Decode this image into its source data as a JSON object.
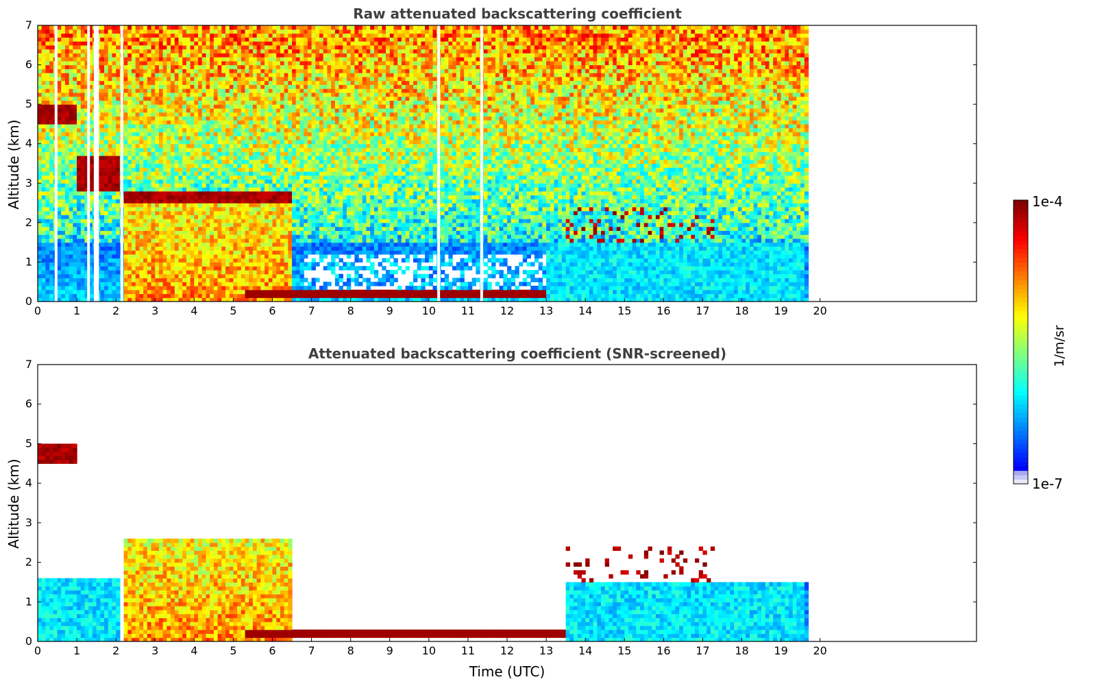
{
  "chart_data": [
    {
      "type": "heatmap",
      "title": "Raw attenuated backscattering coefficient",
      "xlabel": "",
      "ylabel": "Altitude (km)",
      "xlim": [
        0,
        24
      ],
      "ylim": [
        0,
        7
      ],
      "x_ticks": [
        0,
        1,
        2,
        3,
        4,
        5,
        6,
        7,
        8,
        9,
        10,
        11,
        12,
        13,
        14,
        15,
        16,
        17,
        18,
        19,
        20
      ],
      "y_ticks": [
        0,
        1,
        2,
        3,
        4,
        5,
        6,
        7
      ],
      "data_extent_hours": [
        0,
        19.65
      ],
      "missing_profiles_hours": [
        0.47,
        1.3,
        1.47,
        1.53,
        2.15,
        10.25,
        11.35
      ],
      "features": [
        {
          "kind": "cloud",
          "t_start": 0.0,
          "t_end": 1.0,
          "alt_top": 5.0,
          "alt_bottom": 4.5
        },
        {
          "kind": "cloud",
          "t_start": 1.0,
          "t_end": 2.1,
          "alt_top": 3.7,
          "alt_bottom": 2.8
        },
        {
          "kind": "cloud",
          "t_start": 2.2,
          "t_end": 6.5,
          "alt_top": 2.8,
          "alt_bottom": 2.2
        },
        {
          "kind": "precipitation",
          "t_start": 2.2,
          "t_end": 6.5,
          "alt_top": 2.5,
          "alt_bottom": 0.0
        },
        {
          "kind": "fog_layer",
          "t_start": 5.3,
          "t_end": 13.5,
          "alt_top": 0.3,
          "alt_bottom": 0.1
        },
        {
          "kind": "boundary_layer_clouds",
          "t_start": 13.5,
          "t_end": 17.3,
          "alt_top": 2.4,
          "alt_bottom": 0.3
        },
        {
          "kind": "aerosol_layer",
          "t_start": 13.0,
          "t_end": 19.65,
          "alt_top": 1.5,
          "alt_bottom": 0.0
        }
      ]
    },
    {
      "type": "heatmap",
      "title": "Attenuated backscattering coefficient (SNR-screened)",
      "xlabel": "Time (UTC)",
      "ylabel": "Altitude (km)",
      "xlim": [
        0,
        24
      ],
      "ylim": [
        0,
        7
      ],
      "x_ticks": [
        0,
        1,
        2,
        3,
        4,
        5,
        6,
        7,
        8,
        9,
        10,
        11,
        12,
        13,
        14,
        15,
        16,
        17,
        18,
        19,
        20
      ],
      "y_ticks": [
        0,
        1,
        2,
        3,
        4,
        5,
        6,
        7
      ],
      "data_extent_hours": [
        0,
        19.65
      ],
      "features": [
        {
          "kind": "cloud",
          "t_start": 0.0,
          "t_end": 1.0,
          "alt_top": 5.0,
          "alt_bottom": 4.5
        },
        {
          "kind": "aerosol_layer",
          "t_start": 0.0,
          "t_end": 2.1,
          "alt_top": 1.6,
          "alt_bottom": 0.0
        },
        {
          "kind": "precipitation",
          "t_start": 2.2,
          "t_end": 6.5,
          "alt_top": 2.6,
          "alt_bottom": 0.0
        },
        {
          "kind": "fog_layer",
          "t_start": 5.3,
          "t_end": 13.5,
          "alt_top": 0.3,
          "alt_bottom": 0.1
        },
        {
          "kind": "boundary_layer_clouds",
          "t_start": 13.5,
          "t_end": 17.3,
          "alt_top": 2.4,
          "alt_bottom": 0.3
        },
        {
          "kind": "aerosol_layer",
          "t_start": 13.5,
          "t_end": 19.65,
          "alt_top": 1.5,
          "alt_bottom": 0.0
        }
      ]
    }
  ],
  "colorbar": {
    "min_label": "1e-7",
    "max_label": "1e-4",
    "unit_label": "1/m/sr",
    "scale": "log",
    "colormap": "jet",
    "range": [
      1e-07,
      0.0001
    ]
  }
}
